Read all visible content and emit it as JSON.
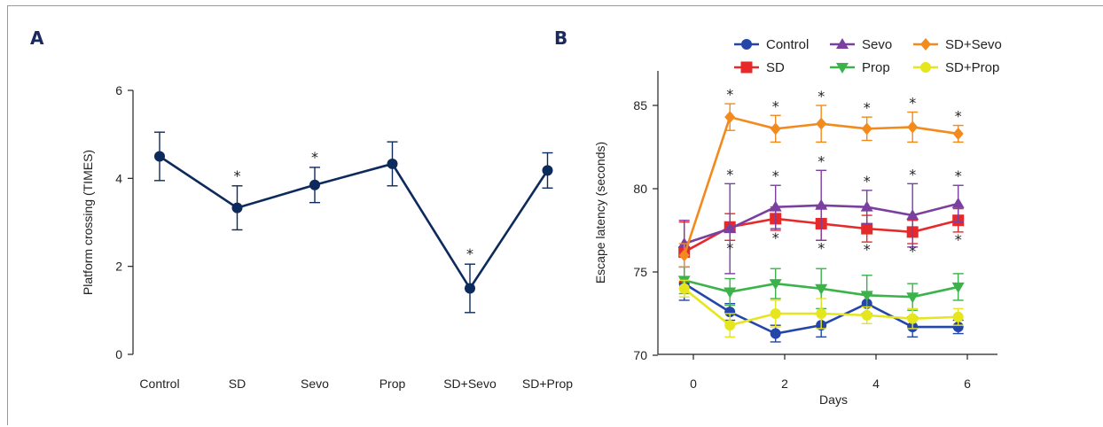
{
  "panels": {
    "A": {
      "label": "A"
    },
    "B": {
      "label": "B"
    }
  },
  "chart_data": [
    {
      "type": "line",
      "panel": "A",
      "title": "",
      "ylabel": "Platform crossing (TIMES)",
      "xlabel": "",
      "ylim": [
        0,
        6
      ],
      "yticks": [
        0,
        2,
        4,
        6
      ],
      "categories": [
        "Control",
        "SD",
        "Sevo",
        "Prop",
        "SD+Sevo",
        "SD+Prop"
      ],
      "series": [
        {
          "color": "#0d2a5c",
          "values": [
            4.5,
            3.33,
            3.85,
            4.33,
            1.5,
            4.18
          ],
          "errors": [
            0.55,
            0.5,
            0.4,
            0.5,
            0.55,
            0.4
          ],
          "significant": [
            false,
            true,
            true,
            false,
            true,
            false
          ]
        }
      ],
      "annotation_symbol": "*"
    },
    {
      "type": "line",
      "panel": "B",
      "title": "",
      "xlabel": "Days",
      "ylabel": "Escape latency (seconds)",
      "xlim": [
        -0.6,
        7.2
      ],
      "ylim": [
        70,
        86
      ],
      "xticks": [
        0,
        2,
        4,
        6
      ],
      "yticks": [
        70,
        75,
        80,
        85
      ],
      "x": [
        -0.2,
        0.8,
        1.8,
        2.8,
        3.8,
        4.8,
        5.8
      ],
      "legend": {
        "position": "top",
        "columns": 3
      },
      "annotation_symbol": "*",
      "series": [
        {
          "name": "Control",
          "color": "#2346a8",
          "marker": "circle",
          "values": [
            74.3,
            72.6,
            71.3,
            71.8,
            73.1,
            71.7,
            71.7
          ],
          "errors": [
            1.0,
            0.5,
            0.5,
            0.7,
            0.6,
            0.6,
            0.4
          ],
          "significant": [
            false,
            false,
            false,
            false,
            false,
            false,
            false
          ]
        },
        {
          "name": "SD",
          "color": "#e62a2a",
          "marker": "square",
          "values": [
            76.2,
            77.7,
            78.2,
            77.9,
            77.6,
            77.4,
            78.1
          ],
          "errors": [
            1.8,
            0.8,
            0.7,
            1.0,
            0.8,
            0.7,
            0.7
          ],
          "significant": [
            false,
            true,
            true,
            true,
            true,
            true,
            true
          ]
        },
        {
          "name": "Sevo",
          "color": "#7b3fa0",
          "marker": "triangle-up",
          "values": [
            76.7,
            77.6,
            78.9,
            79.0,
            78.9,
            78.4,
            79.1
          ],
          "errors": [
            1.4,
            2.7,
            1.3,
            2.1,
            1.0,
            1.9,
            1.1
          ],
          "significant": [
            false,
            true,
            true,
            true,
            true,
            true,
            true
          ]
        },
        {
          "name": "Prop",
          "color": "#3bb34a",
          "marker": "triangle-down",
          "values": [
            74.5,
            73.8,
            74.3,
            74.0,
            73.6,
            73.5,
            74.1
          ],
          "errors": [
            0.8,
            0.8,
            0.9,
            1.2,
            1.2,
            0.8,
            0.8
          ],
          "significant": [
            false,
            false,
            false,
            false,
            false,
            false,
            false
          ]
        },
        {
          "name": "SD+Sevo",
          "color": "#f28a1e",
          "marker": "diamond",
          "values": [
            76.0,
            84.3,
            83.6,
            83.9,
            83.6,
            83.7,
            83.3
          ],
          "errors": [
            0.7,
            0.8,
            0.8,
            1.1,
            0.7,
            0.9,
            0.5
          ],
          "significant": [
            false,
            true,
            true,
            true,
            true,
            true,
            true
          ]
        },
        {
          "name": "SD+Prop",
          "color": "#e6e61e",
          "marker": "circle",
          "values": [
            74.0,
            71.8,
            72.5,
            72.5,
            72.4,
            72.2,
            72.3
          ],
          "errors": [
            0.5,
            0.7,
            0.8,
            0.9,
            0.5,
            0.6,
            0.5
          ],
          "significant": [
            false,
            false,
            false,
            false,
            false,
            false,
            false
          ]
        }
      ]
    }
  ]
}
